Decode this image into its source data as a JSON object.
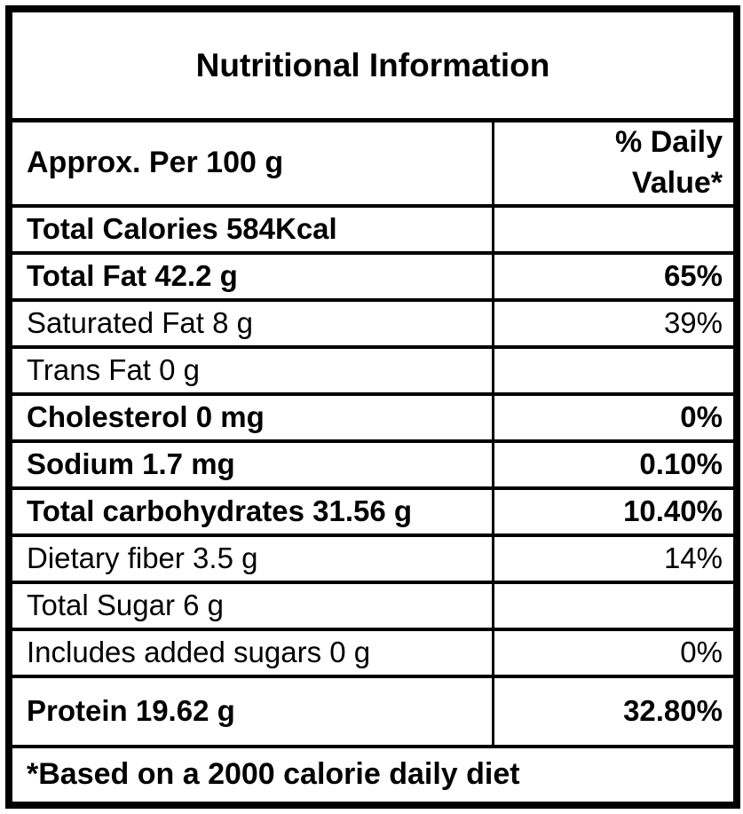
{
  "table": {
    "title": "Nutritional Information",
    "header": {
      "serving_label": "Approx. Per 100 g",
      "daily_value_label": "% Daily Value*"
    },
    "rows": [
      {
        "label": "Total Calories 584Kcal",
        "value": "",
        "bold": true,
        "tall": false
      },
      {
        "label": "Total Fat 42.2 g",
        "value": "65%",
        "bold": true,
        "tall": false
      },
      {
        "label": "Saturated Fat 8 g",
        "value": "39%",
        "bold": false,
        "tall": false
      },
      {
        "label": "Trans Fat 0 g",
        "value": "",
        "bold": false,
        "tall": false
      },
      {
        "label": "Cholesterol 0 mg",
        "value": "0%",
        "bold": true,
        "tall": false
      },
      {
        "label": "Sodium 1.7 mg",
        "value": "0.10%",
        "bold": true,
        "tall": false
      },
      {
        "label": "Total carbohydrates 31.56 g",
        "value": "10.40%",
        "bold": true,
        "tall": false
      },
      {
        "label": "Dietary fiber 3.5 g",
        "value": "14%",
        "bold": false,
        "tall": false
      },
      {
        "label": "Total Sugar 6 g",
        "value": "",
        "bold": false,
        "tall": false
      },
      {
        "label": "Includes added sugars 0 g",
        "value": "0%",
        "bold": false,
        "tall": false
      },
      {
        "label": "Protein 19.62 g",
        "value": "32.80%",
        "bold": true,
        "tall": true
      }
    ],
    "footnote": "*Based on a 2000 calorie daily diet",
    "colors": {
      "border": "#000000",
      "text": "#000000",
      "background": "#ffffff"
    }
  }
}
